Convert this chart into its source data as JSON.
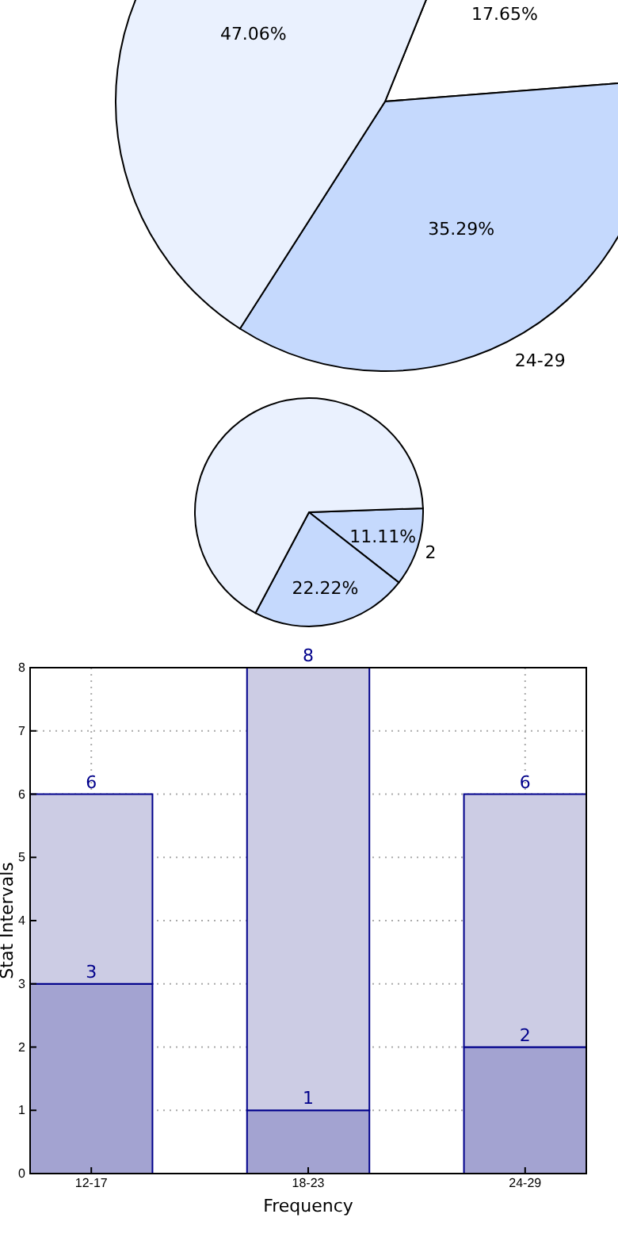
{
  "chart_data": [
    {
      "type": "pie",
      "categories": [
        null,
        "24-29",
        null
      ],
      "values": [
        17.65,
        35.29,
        47.06
      ],
      "colors": [
        "#ffffff",
        "#c5d9fd",
        "#eaf1fe"
      ],
      "value_labels": [
        "17.65%",
        "35.29%",
        "47.06%"
      ]
    },
    {
      "type": "pie",
      "categories": [
        "2",
        null,
        null
      ],
      "values": [
        11.11,
        22.22,
        66.67
      ],
      "colors": [
        "#c5d9fd",
        "#c5d9fd",
        "#eaf1fe"
      ],
      "value_labels": [
        "11.11%",
        "22.22%",
        null
      ]
    },
    {
      "type": "bar",
      "categories": [
        "12-17",
        "18-23",
        "24-29"
      ],
      "xlabel": "Frequency",
      "ylabel": "Stat Intervals",
      "ylim": [
        0,
        8
      ],
      "yticks": [
        0,
        1,
        2,
        3,
        4,
        5,
        6,
        7,
        8
      ],
      "grid": true,
      "stacked": true,
      "totals": [
        "6",
        "8",
        "6"
      ],
      "series": [
        {
          "color": "#a3a3d1",
          "values": [
            3,
            1,
            2
          ],
          "value_labels": [
            "3",
            "1",
            "2"
          ]
        },
        {
          "color": "#cccce4",
          "values": [
            3,
            7,
            4
          ]
        }
      ]
    }
  ]
}
